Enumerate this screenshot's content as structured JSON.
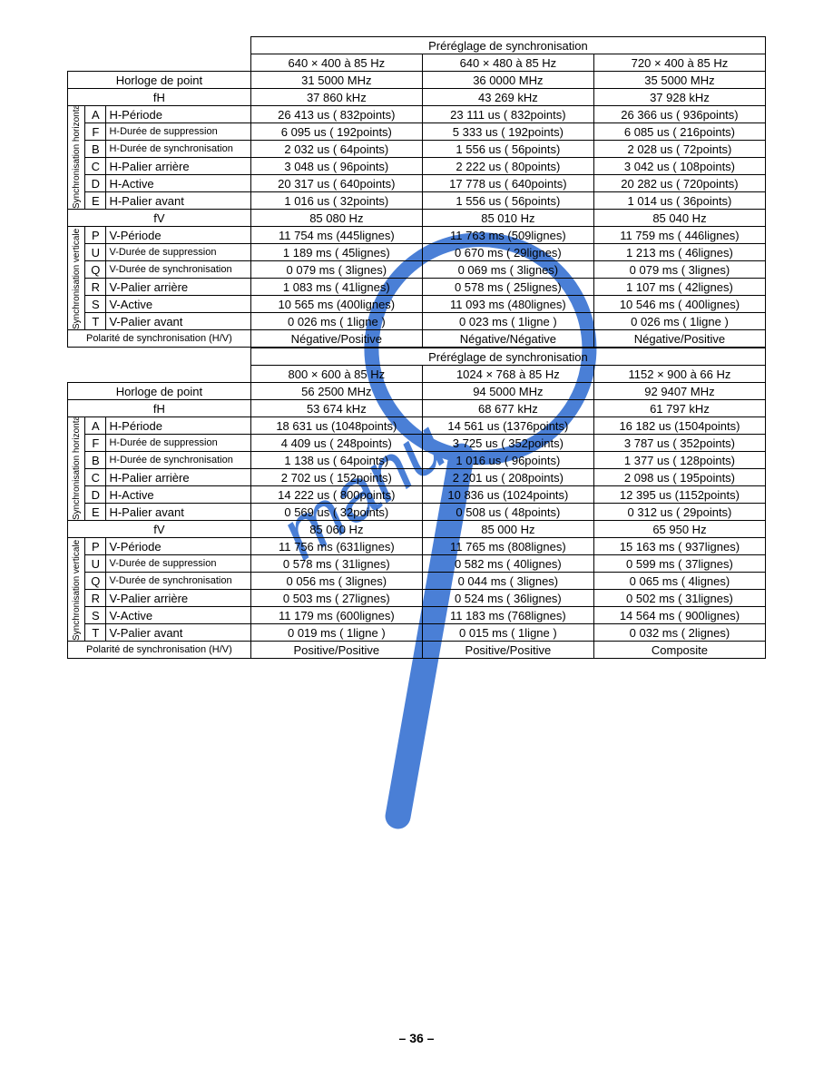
{
  "page_number": "– 36 –",
  "watermark_color": "#4a7fd6",
  "labels": {
    "pre_title": "Préréglage de synchronisation",
    "horloge": "Horloge de point",
    "fH": "fH",
    "fV": "fV",
    "sync_h": "Synchronisation horizontale",
    "sync_v": "Synchronisation verticale",
    "polarity": "Polarité de synchronisation (H/V)"
  },
  "row_defs_h": [
    {
      "code": "A",
      "label": "H-Période"
    },
    {
      "code": "F",
      "label": "H-Durée de suppression"
    },
    {
      "code": "B",
      "label": "H-Durée de synchronisation"
    },
    {
      "code": "C",
      "label": "H-Palier arrière"
    },
    {
      "code": "D",
      "label": "H-Active"
    },
    {
      "code": "E",
      "label": "H-Palier avant"
    }
  ],
  "row_defs_v": [
    {
      "code": "P",
      "label": "V-Période"
    },
    {
      "code": "U",
      "label": "V-Durée de suppression"
    },
    {
      "code": "Q",
      "label": "V-Durée de synchronisation"
    },
    {
      "code": "R",
      "label": "V-Palier arrière"
    },
    {
      "code": "S",
      "label": "V-Active"
    },
    {
      "code": "T",
      "label": "V-Palier avant"
    }
  ],
  "tables": [
    {
      "modes": [
        "640 × 400 à 85 Hz",
        "640 × 480 à 85 Hz",
        "720 × 400 à 85 Hz"
      ],
      "horloge": [
        "31 5000 MHz",
        "36 0000 MHz",
        "35 5000 MHz"
      ],
      "fH": [
        "37 860  kHz",
        "43 269  kHz",
        "37 928  kHz"
      ],
      "h_rows": [
        [
          "26 413 us ( 832points)",
          "23 111 us ( 832points)",
          "26 366 us ( 936points)"
        ],
        [
          "6 095 us ( 192points)",
          "5 333 us ( 192points)",
          "6 085 us ( 216points)"
        ],
        [
          "2 032 us (   64points)",
          "1 556 us (   56points)",
          "2 028 us (   72points)"
        ],
        [
          "3 048 us (   96points)",
          "2 222 us (   80points)",
          "3 042 us ( 108points)"
        ],
        [
          "20 317 us ( 640points)",
          "17 778 us ( 640points)",
          "20 282 us ( 720points)"
        ],
        [
          "1 016 us (   32points)",
          "1 556 us (   56points)",
          "1 014 us (   36points)"
        ]
      ],
      "fV": [
        "85 080  Hz",
        "85 010  Hz",
        "85 040  Hz"
      ],
      "v_rows": [
        [
          "11 754 ms (445lignes)",
          "11 763 ms (509lignes)",
          "11 759 ms ( 446lignes)"
        ],
        [
          "1 189 ms (  45lignes)",
          "0 670 ms (  29lignes)",
          "1 213 ms (  46lignes)"
        ],
        [
          "0 079 ms (    3lignes)",
          "0 069 ms (    3lignes)",
          "0 079 ms (    3lignes)"
        ],
        [
          "1 083 ms (  41lignes)",
          "0 578 ms (  25lignes)",
          "1 107 ms (  42lignes)"
        ],
        [
          "10 565 ms (400lignes)",
          "11 093 ms (480lignes)",
          "10 546 ms ( 400lignes)"
        ],
        [
          "0 026 ms (    1ligne )",
          "0 023 ms (    1ligne )",
          "0 026 ms (    1ligne )"
        ]
      ],
      "polarity": [
        "Négative/Positive",
        "Négative/Négative",
        "Négative/Positive"
      ]
    },
    {
      "modes": [
        "800 × 600 à 85 Hz",
        "1024 × 768 à 85 Hz",
        "1152 × 900 à 66 Hz"
      ],
      "horloge": [
        "56 2500 MHz",
        "94 5000 MHz",
        "92 9407 MHz"
      ],
      "fH": [
        "53 674 kHz",
        "68 677  kHz",
        "61 797  kHz"
      ],
      "h_rows": [
        [
          "18 631 us (1048points)",
          "14 561 us (1376points)",
          "16 182 us (1504points)"
        ],
        [
          "4 409 us ( 248points)",
          "3 725 us ( 352points)",
          "3 787 us ( 352points)"
        ],
        [
          "1 138 us (   64points)",
          "1 016 us (   96points)",
          "1 377 us ( 128points)"
        ],
        [
          "2 702 us ( 152points)",
          "2 201 us ( 208points)",
          "2 098 us ( 195points)"
        ],
        [
          "14 222 us ( 800points)",
          "10 836 us (1024points)",
          "12 395 us (1152points)"
        ],
        [
          "0 569 us (   32points)",
          "0 508 us (   48points)",
          "0 312 us (   29points)"
        ]
      ],
      "fV": [
        "85 060  Hz",
        "85 000  Hz",
        "65 950  Hz"
      ],
      "v_rows": [
        [
          "11 756 ms (631lignes)",
          "11 765 ms (808lignes)",
          "15 163 ms ( 937lignes)"
        ],
        [
          "0 578 ms (  31lignes)",
          "0 582 ms (  40lignes)",
          "0 599 ms (  37lignes)"
        ],
        [
          "0 056 ms (    3lignes)",
          "0 044 ms (    3lignes)",
          "0 065 ms (    4lignes)"
        ],
        [
          "0 503 ms (  27lignes)",
          "0 524 ms (  36lignes)",
          "0 502 ms (  31lignes)"
        ],
        [
          "11 179 ms (600lignes)",
          "11 183 ms (768lignes)",
          "14 564 ms ( 900lignes)"
        ],
        [
          "0 019 ms (    1ligne )",
          "0 015 ms (    1ligne )",
          "0 032 ms (    2lignes)"
        ]
      ],
      "polarity": [
        "Positive/Positive",
        "Positive/Positive",
        "Composite"
      ]
    }
  ]
}
